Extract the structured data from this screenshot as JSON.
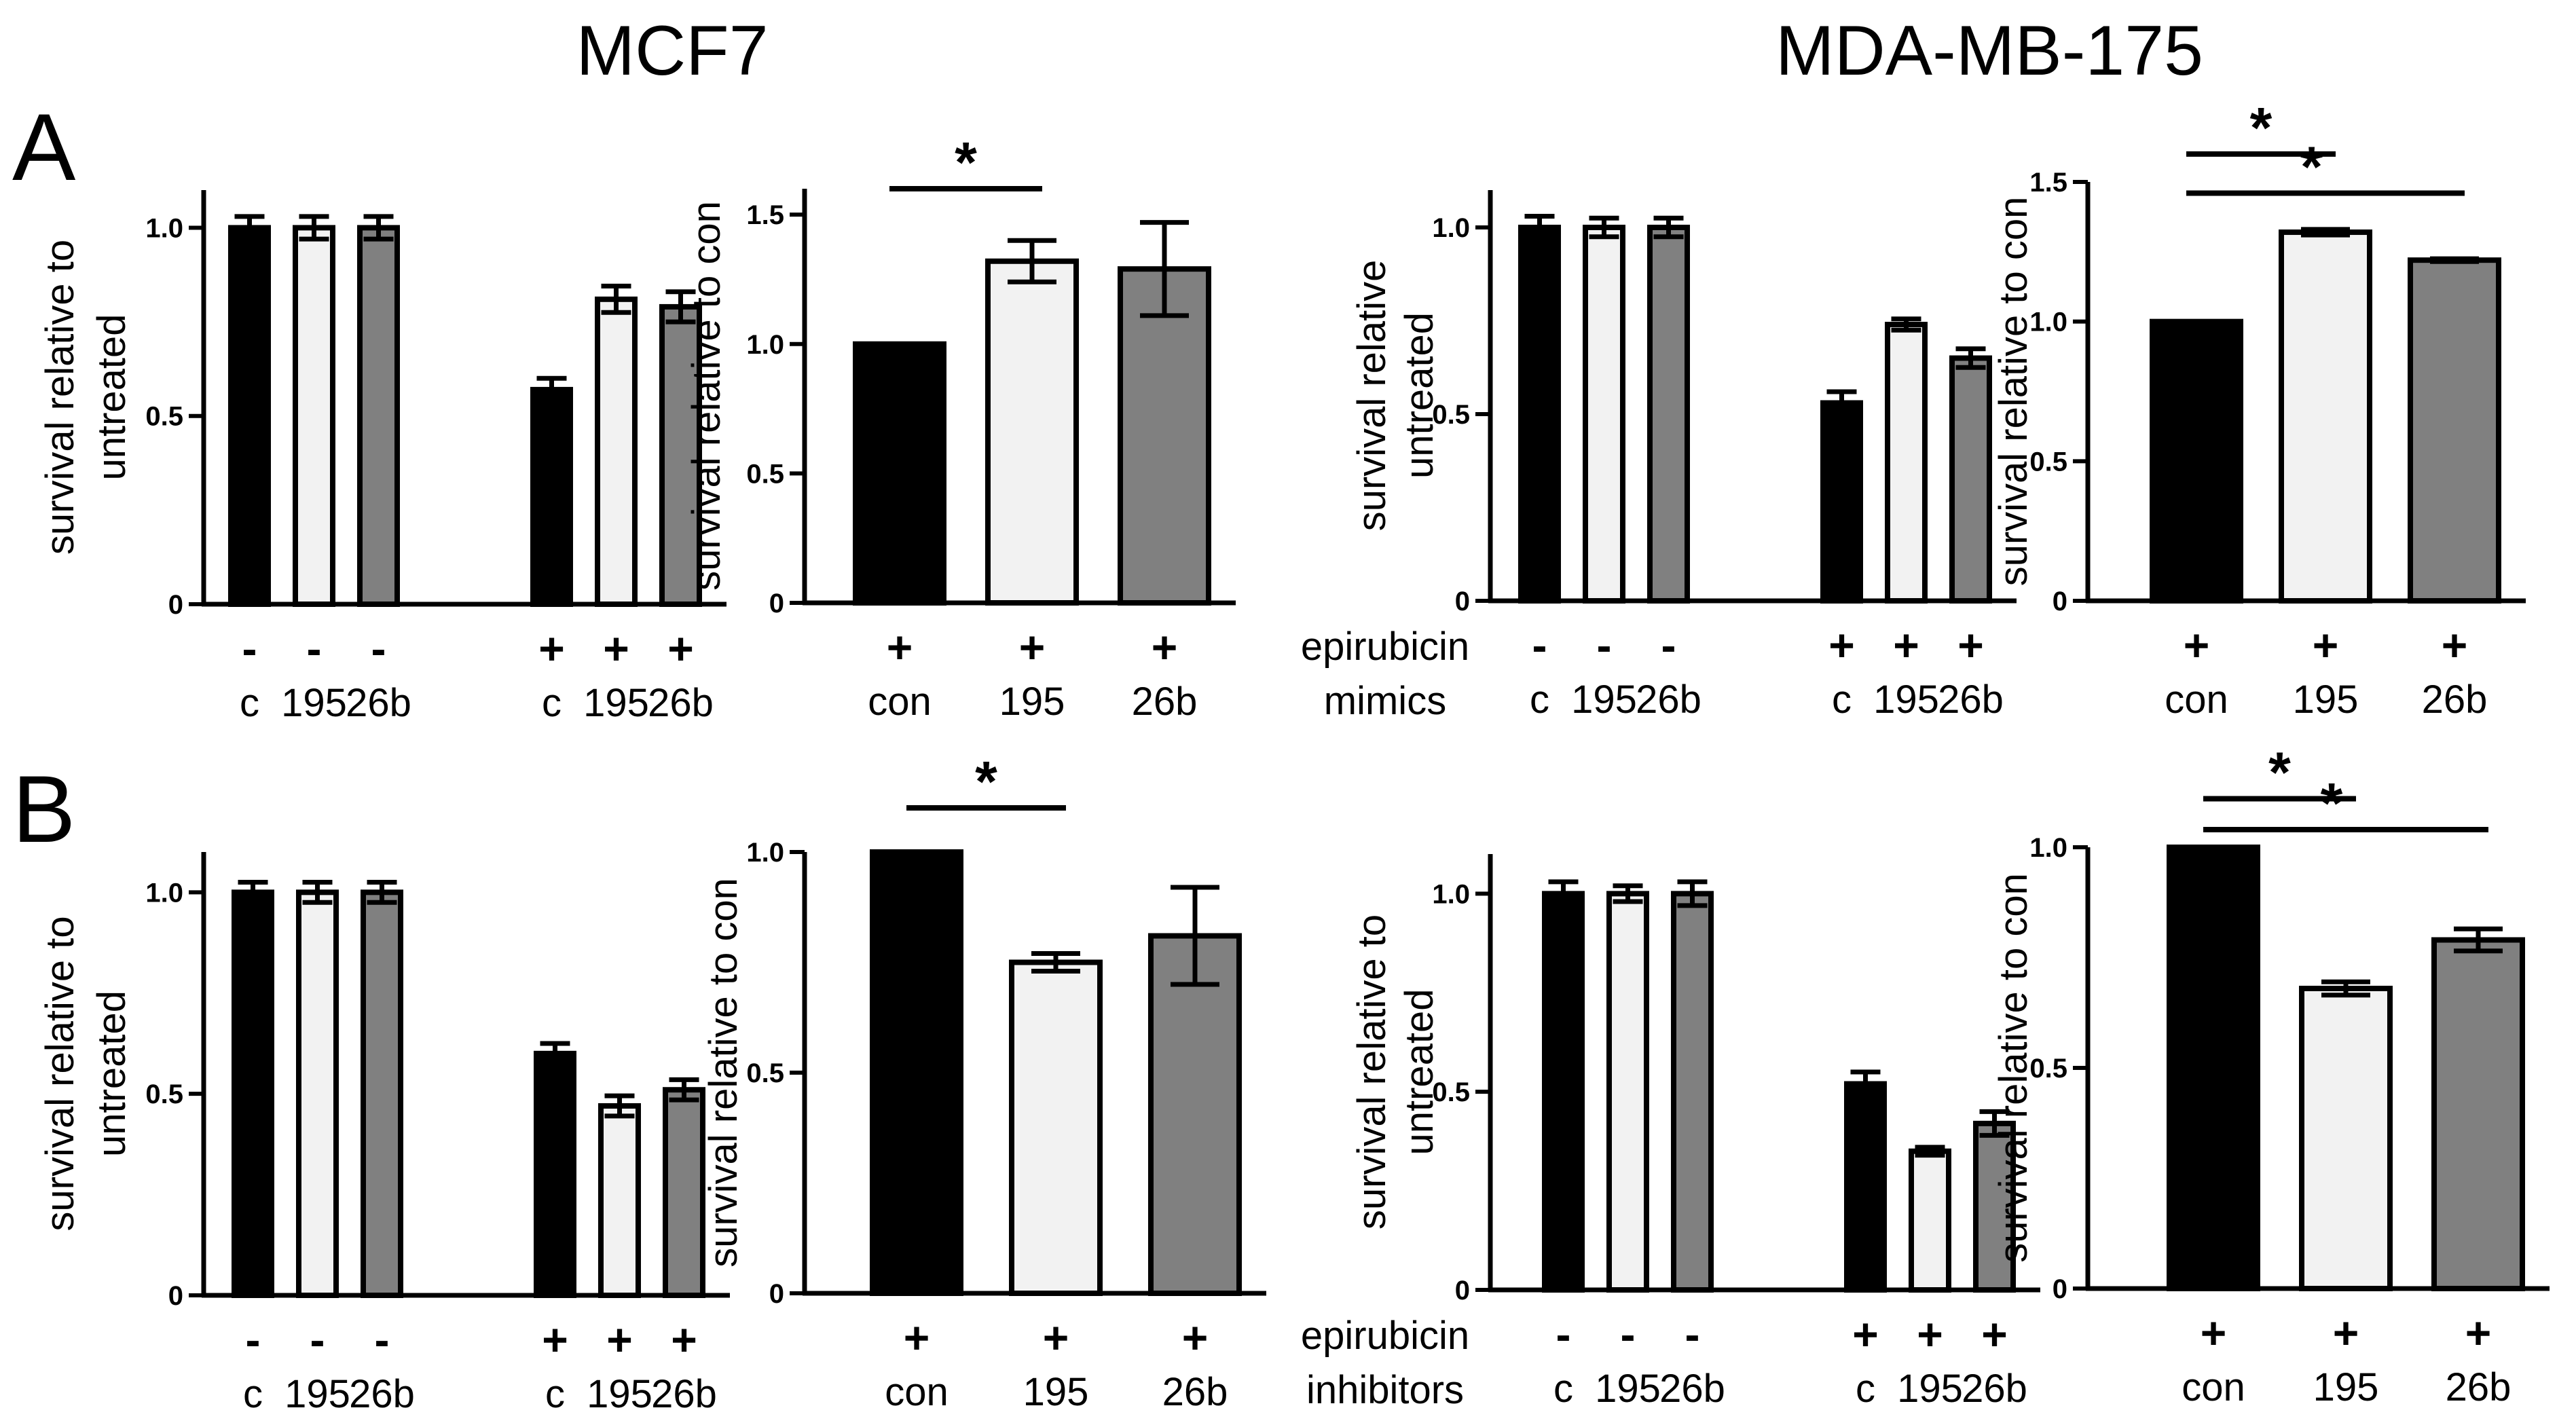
{
  "titles": {
    "left": "MCF7",
    "right": "MDA-MB-175"
  },
  "panel_labels": {
    "A": "A",
    "B": "B"
  },
  "row_labels": {
    "A": {
      "line1": "epirubicin",
      "line2": "mimics"
    },
    "B": {
      "line1": "epirubicin",
      "line2": "inhibitors"
    }
  },
  "colors": {
    "black": "#000000",
    "white": "#f2f2f2",
    "gray": "#808080"
  },
  "chart_data": [
    {
      "id": "A1",
      "type": "bar",
      "row": "A",
      "cell_line": "MCF7",
      "ylabel": [
        "survival relative to",
        "untreated"
      ],
      "ylim": [
        0,
        1.1
      ],
      "ticks": [
        0,
        0.5,
        1.0
      ],
      "tick_labels": [
        "0",
        "0.5",
        "1.0"
      ],
      "treatment": [
        "-",
        "-",
        "-",
        "+",
        "+",
        "+"
      ],
      "categories": [
        "c",
        "195",
        "26b",
        "c",
        "195",
        "26b"
      ],
      "values": [
        1.0,
        1.0,
        1.0,
        0.57,
        0.81,
        0.79
      ],
      "errors": [
        0.03,
        0.03,
        0.03,
        0.03,
        0.035,
        0.04
      ],
      "fills": [
        "black",
        "white",
        "gray",
        "black",
        "white",
        "gray"
      ],
      "significance": []
    },
    {
      "id": "A2",
      "type": "bar",
      "row": "A",
      "cell_line": "MCF7",
      "ylabel": [
        "survival relative to con"
      ],
      "ylim": [
        0,
        1.6
      ],
      "ticks": [
        0,
        0.5,
        1.0,
        1.5
      ],
      "tick_labels": [
        "0",
        "0.5",
        "1.0",
        "1.5"
      ],
      "treatment": [
        "+",
        "+",
        "+"
      ],
      "categories": [
        "con",
        "195",
        "26b"
      ],
      "values": [
        1.0,
        1.32,
        1.29
      ],
      "errors": [
        0,
        0.08,
        0.18
      ],
      "fills": [
        "black",
        "white",
        "gray"
      ],
      "significance": [
        {
          "from": 0,
          "to": 1,
          "level": 1.6,
          "label": "*"
        }
      ]
    },
    {
      "id": "A3",
      "type": "bar",
      "row": "A",
      "cell_line": "MDA-MB-175",
      "ylabel": [
        "survival relative",
        "untreated"
      ],
      "ylim": [
        0,
        1.1
      ],
      "ticks": [
        0,
        0.5,
        1.0
      ],
      "tick_labels": [
        "0",
        "0.5",
        "1.0"
      ],
      "treatment": [
        "-",
        "-",
        "-",
        "+",
        "+",
        "+"
      ],
      "categories": [
        "c",
        "195",
        "26b",
        "c",
        "195",
        "26b"
      ],
      "values": [
        1.0,
        1.0,
        1.0,
        0.53,
        0.74,
        0.65
      ],
      "errors": [
        0.03,
        0.025,
        0.025,
        0.03,
        0.015,
        0.025
      ],
      "fills": [
        "black",
        "white",
        "gray",
        "black",
        "white",
        "gray"
      ],
      "significance": []
    },
    {
      "id": "A4",
      "type": "bar",
      "row": "A",
      "cell_line": "MDA-MB-175",
      "ylabel": [
        "survival relative to con"
      ],
      "ylim": [
        0,
        1.5
      ],
      "ticks": [
        0,
        0.5,
        1.0,
        1.5
      ],
      "tick_labels": [
        "0",
        "0.5",
        "1.0",
        "1.5"
      ],
      "treatment": [
        "+",
        "+",
        "+"
      ],
      "categories": [
        "con",
        "195",
        "26b"
      ],
      "values": [
        1.0,
        1.32,
        1.22
      ],
      "errors": [
        0,
        0.01,
        0.005
      ],
      "fills": [
        "black",
        "white",
        "gray"
      ],
      "significance": [
        {
          "from": 0,
          "to": 1,
          "level": 1.6,
          "label": "*"
        },
        {
          "from": 0,
          "to": 2,
          "level": 1.46,
          "label": "*"
        }
      ]
    },
    {
      "id": "B1",
      "type": "bar",
      "row": "B",
      "cell_line": "MCF7",
      "ylabel": [
        "survival relative to",
        "untreated"
      ],
      "ylim": [
        0,
        1.1
      ],
      "ticks": [
        0,
        0.5,
        1.0
      ],
      "tick_labels": [
        "0",
        "0.5",
        "1.0"
      ],
      "treatment": [
        "-",
        "-",
        "-",
        "+",
        "+",
        "+"
      ],
      "categories": [
        "c",
        "195",
        "26b",
        "c",
        "195",
        "26b"
      ],
      "values": [
        1.0,
        1.0,
        1.0,
        0.6,
        0.47,
        0.51
      ],
      "errors": [
        0.025,
        0.025,
        0.025,
        0.025,
        0.025,
        0.025
      ],
      "fills": [
        "black",
        "white",
        "gray",
        "black",
        "white",
        "gray"
      ],
      "significance": []
    },
    {
      "id": "B2",
      "type": "bar",
      "row": "B",
      "cell_line": "MCF7",
      "ylabel": [
        "survival relative to con"
      ],
      "ylim": [
        0,
        1.0
      ],
      "ticks": [
        0,
        0.5,
        1.0
      ],
      "tick_labels": [
        "0",
        "0.5",
        "1.0"
      ],
      "treatment": [
        "+",
        "+",
        "+"
      ],
      "categories": [
        "con",
        "195",
        "26b"
      ],
      "values": [
        1.0,
        0.75,
        0.81
      ],
      "errors": [
        0,
        0.02,
        0.11
      ],
      "fills": [
        "black",
        "white",
        "gray"
      ],
      "significance": [
        {
          "from": 0,
          "to": 1,
          "level": 1.1,
          "label": "*"
        }
      ]
    },
    {
      "id": "B3",
      "type": "bar",
      "row": "B",
      "cell_line": "MDA-MB-175",
      "ylabel": [
        "survival relative to",
        "untreated"
      ],
      "ylim": [
        0,
        1.1
      ],
      "ticks": [
        0,
        0.5,
        1.0
      ],
      "tick_labels": [
        "0",
        "0.5",
        "1.0"
      ],
      "treatment": [
        "-",
        "-",
        "-",
        "+",
        "+",
        "+"
      ],
      "categories": [
        "c",
        "195",
        "26b",
        "c",
        "195",
        "26b"
      ],
      "values": [
        1.0,
        1.0,
        1.0,
        0.52,
        0.35,
        0.42
      ],
      "errors": [
        0.03,
        0.02,
        0.03,
        0.03,
        0.01,
        0.03
      ],
      "fills": [
        "black",
        "white",
        "gray",
        "black",
        "white",
        "gray"
      ],
      "significance": []
    },
    {
      "id": "B4",
      "type": "bar",
      "row": "B",
      "cell_line": "MDA-MB-175",
      "ylabel": [
        "survival relative to con"
      ],
      "ylim": [
        0,
        1.0
      ],
      "ticks": [
        0,
        0.5,
        1.0
      ],
      "tick_labels": [
        "0",
        "0.5",
        "1.0"
      ],
      "treatment": [
        "+",
        "+",
        "+"
      ],
      "categories": [
        "con",
        "195",
        "26b"
      ],
      "values": [
        1.0,
        0.68,
        0.79
      ],
      "errors": [
        0,
        0.015,
        0.025
      ],
      "fills": [
        "black",
        "white",
        "gray"
      ],
      "significance": [
        {
          "from": 0,
          "to": 1,
          "level": 1.11,
          "label": "*"
        },
        {
          "from": 0,
          "to": 2,
          "level": 1.04,
          "label": "*"
        }
      ]
    }
  ]
}
